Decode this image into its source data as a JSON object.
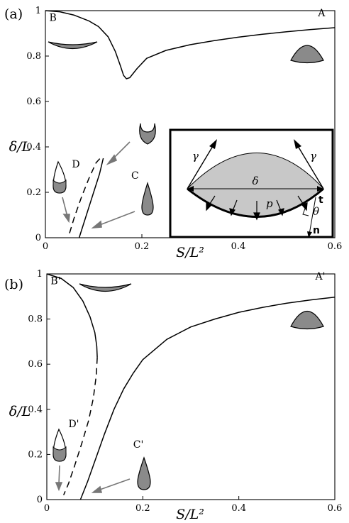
{
  "chart_data": [
    {
      "type": "line",
      "panel_label": "(a)",
      "xlabel": "S/L²",
      "ylabel": "δ/L",
      "xlim": [
        0,
        0.6
      ],
      "ylim": [
        0,
        1
      ],
      "x_ticks": [
        "0",
        "0.2",
        "0.4",
        "0.6"
      ],
      "y_ticks": [
        "0",
        "0.2",
        "0.4",
        "0.6",
        "0.8",
        "1"
      ],
      "series": [
        {
          "style": "solid",
          "points": [
            [
              0.0,
              1.0
            ],
            [
              0.03,
              0.995
            ],
            [
              0.06,
              0.98
            ],
            [
              0.09,
              0.955
            ],
            [
              0.11,
              0.93
            ],
            [
              0.13,
              0.885
            ],
            [
              0.145,
              0.82
            ],
            [
              0.155,
              0.76
            ],
            [
              0.162,
              0.715
            ],
            [
              0.168,
              0.7
            ],
            [
              0.175,
              0.705
            ],
            [
              0.19,
              0.745
            ],
            [
              0.21,
              0.79
            ],
            [
              0.25,
              0.825
            ],
            [
              0.3,
              0.85
            ],
            [
              0.35,
              0.868
            ],
            [
              0.4,
              0.883
            ],
            [
              0.45,
              0.896
            ],
            [
              0.5,
              0.907
            ],
            [
              0.55,
              0.917
            ],
            [
              0.6,
              0.925
            ]
          ]
        },
        {
          "style": "solid",
          "points": [
            [
              0.07,
              0.0
            ],
            [
              0.085,
              0.1
            ],
            [
              0.1,
              0.2
            ],
            [
              0.112,
              0.28
            ],
            [
              0.12,
              0.35
            ]
          ]
        },
        {
          "style": "dashed",
          "points": [
            [
              0.05,
              0.02
            ],
            [
              0.06,
              0.09
            ],
            [
              0.075,
              0.18
            ],
            [
              0.09,
              0.26
            ],
            [
              0.105,
              0.33
            ],
            [
              0.118,
              0.36
            ]
          ]
        }
      ],
      "annotations": [
        {
          "text": "A",
          "x": 0.58,
          "y": 0.975
        },
        {
          "text": "B",
          "x": 0.008,
          "y": 0.955
        },
        {
          "text": "C",
          "x": 0.178,
          "y": 0.26
        },
        {
          "text": "D",
          "x": 0.055,
          "y": 0.31
        }
      ],
      "inset": {
        "symbols": {
          "gamma_left": "γ",
          "gamma_right": "γ",
          "delta": "δ",
          "p": "p",
          "t": "t",
          "theta": "θ",
          "n": "n"
        }
      }
    },
    {
      "type": "line",
      "panel_label": "(b)",
      "xlabel": "S/L²",
      "ylabel": "δ/L",
      "xlim": [
        0,
        0.6
      ],
      "ylim": [
        0,
        1
      ],
      "x_ticks": [
        "0",
        "0.2",
        "0.4",
        "0.6"
      ],
      "y_ticks": [
        "0",
        "0.2",
        "0.4",
        "0.6",
        "0.8",
        "1"
      ],
      "series": [
        {
          "style": "solid",
          "points": [
            [
              0.0,
              1.0
            ],
            [
              0.03,
              0.98
            ],
            [
              0.055,
              0.94
            ],
            [
              0.075,
              0.88
            ],
            [
              0.09,
              0.81
            ],
            [
              0.1,
              0.74
            ],
            [
              0.104,
              0.68
            ],
            [
              0.105,
              0.63
            ]
          ]
        },
        {
          "style": "dashed",
          "points": [
            [
              0.105,
              0.63
            ],
            [
              0.103,
              0.55
            ],
            [
              0.097,
              0.45
            ],
            [
              0.087,
              0.35
            ],
            [
              0.073,
              0.25
            ],
            [
              0.058,
              0.15
            ],
            [
              0.045,
              0.07
            ],
            [
              0.035,
              0.02
            ]
          ]
        },
        {
          "style": "solid",
          "points": [
            [
              0.07,
              0.0
            ],
            [
              0.085,
              0.08
            ],
            [
              0.1,
              0.17
            ],
            [
              0.12,
              0.29
            ],
            [
              0.14,
              0.4
            ],
            [
              0.16,
              0.49
            ],
            [
              0.18,
              0.56
            ],
            [
              0.2,
              0.62
            ],
            [
              0.25,
              0.71
            ],
            [
              0.3,
              0.765
            ],
            [
              0.35,
              0.8
            ],
            [
              0.4,
              0.83
            ],
            [
              0.45,
              0.852
            ],
            [
              0.5,
              0.87
            ],
            [
              0.55,
              0.885
            ],
            [
              0.6,
              0.897
            ]
          ]
        }
      ],
      "annotations": [
        {
          "text": "A'",
          "x": 0.58,
          "y": 0.975
        },
        {
          "text": "B'",
          "x": 0.008,
          "y": 0.955
        },
        {
          "text": "C'",
          "x": 0.18,
          "y": 0.23
        },
        {
          "text": "D'",
          "x": 0.045,
          "y": 0.32
        }
      ]
    }
  ]
}
